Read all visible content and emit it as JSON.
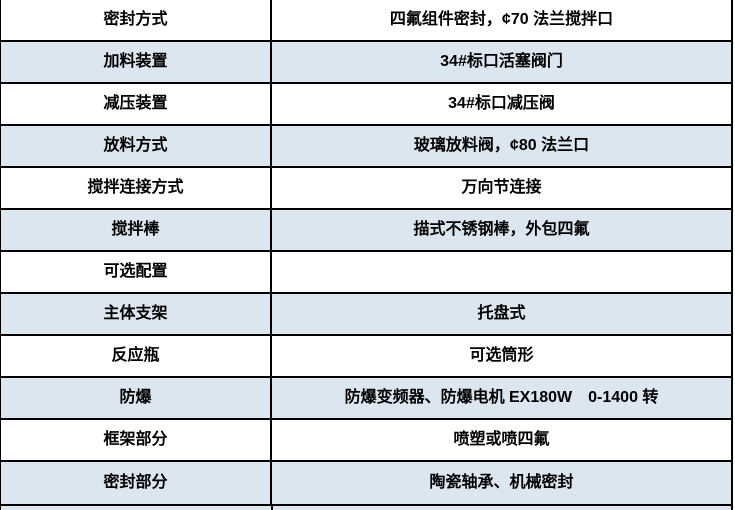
{
  "table": {
    "description": "product-specification-table",
    "columns": [
      "spec-name",
      "spec-value"
    ],
    "rows": [
      {
        "label": "密封方式",
        "value": "四氟组件密封，¢70 法兰搅拌口"
      },
      {
        "label": "加料装置",
        "value": "34#标口活塞阀门"
      },
      {
        "label": "减压装置",
        "value": "34#标口减压阀"
      },
      {
        "label": "放料方式",
        "value": "玻璃放料阀，¢80 法兰口"
      },
      {
        "label": "搅拌连接方式",
        "value": "万向节连接"
      },
      {
        "label": "搅拌棒",
        "value": "描式不锈钢棒，外包四氟"
      },
      {
        "label": "可选配置",
        "value": ""
      },
      {
        "label": "主体支架",
        "value": "托盘式"
      },
      {
        "label": "反应瓶",
        "value": "可选筒形"
      },
      {
        "label": "防爆",
        "value": "防爆变频器、防爆电机 EX180W　0-1400 转"
      },
      {
        "label": "框架部分",
        "value": "喷塑或喷四氟"
      },
      {
        "label": "密封部分",
        "value": "陶瓷轴承、机械密封"
      }
    ]
  },
  "colors": {
    "row_background": "#ffffff",
    "row_alt_background": "#dce6f1",
    "border": "#000000",
    "text": "#000000"
  }
}
